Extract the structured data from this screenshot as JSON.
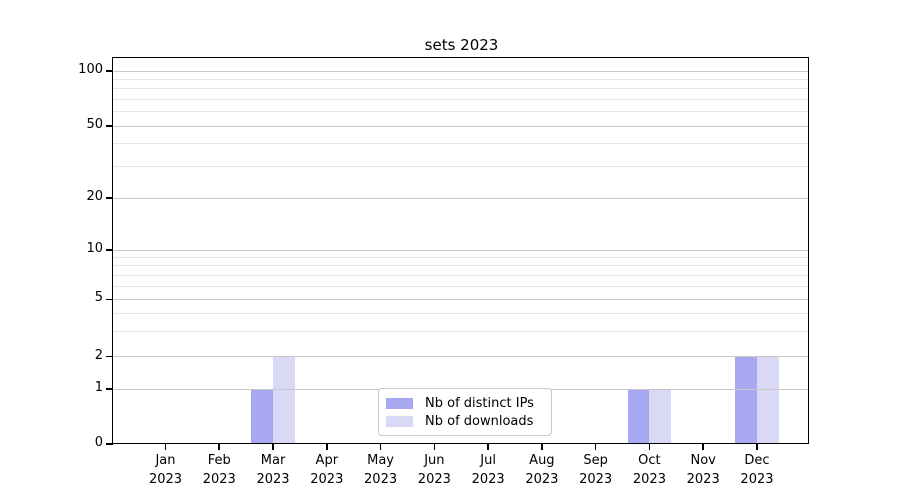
{
  "chart_data": {
    "type": "bar",
    "title": "sets 2023",
    "categories": [
      "Jan",
      "Feb",
      "Mar",
      "Apr",
      "May",
      "Jun",
      "Jul",
      "Aug",
      "Sep",
      "Oct",
      "Nov",
      "Dec"
    ],
    "category_year": "2023",
    "series": [
      {
        "name": "Nb of distinct IPs",
        "color": "#a8a8f2",
        "values": [
          0,
          0,
          1,
          0,
          0,
          0,
          0,
          0,
          0,
          1,
          0,
          2
        ]
      },
      {
        "name": "Nb of downloads",
        "color": "#d9d9f6",
        "values": [
          0,
          0,
          2,
          0,
          0,
          0,
          0,
          0,
          0,
          1,
          0,
          2
        ]
      }
    ],
    "y_axis": {
      "scale": "asinh-log",
      "major_ticks": [
        0,
        1,
        2,
        5,
        10,
        20,
        50,
        100
      ],
      "minor_ticks": [
        3,
        4,
        6,
        7,
        8,
        9,
        30,
        40,
        60,
        70,
        80,
        90
      ],
      "range": [
        0,
        120
      ]
    },
    "legend": {
      "position": "lower center"
    },
    "grid": true
  }
}
